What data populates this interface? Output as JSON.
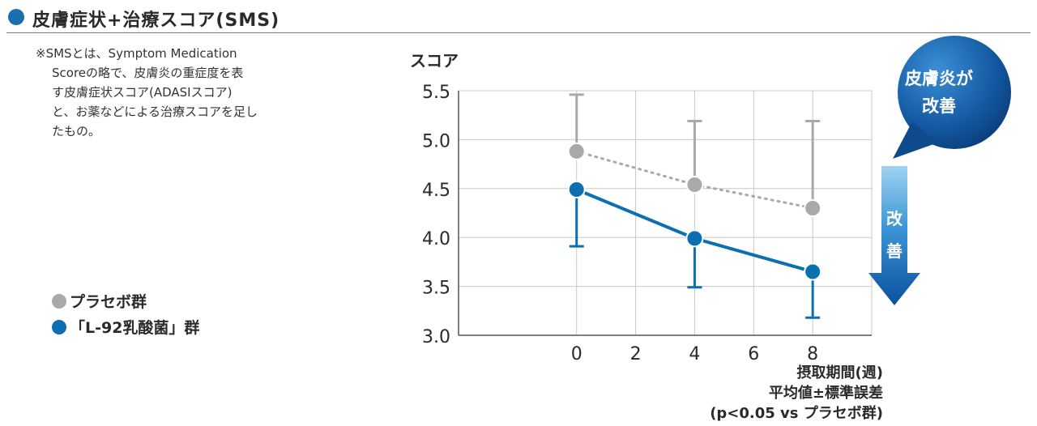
{
  "header": {
    "title": "皮膚症状+治療スコア(SMS)"
  },
  "note": {
    "lines": [
      "※SMSとは、Symptom Medication",
      "Scoreの略で、皮膚炎の重症度を表",
      "す皮膚症状スコア(ADASIスコア)",
      "と、お薬などによる治療スコアを足し",
      "たもの。"
    ]
  },
  "legend": {
    "placebo": "プラセボ群",
    "l92": "「L-92乳酸菌」群"
  },
  "badge": {
    "bubble_line1": "皮膚炎が",
    "bubble_line2": "改善",
    "arrow_char1": "改",
    "arrow_char2": "善"
  },
  "footnotes": {
    "xlabel": "摂取期間(週)",
    "stat": "平均値±標準誤差",
    "significance": "(p<0.05 vs プラセボ群)"
  },
  "colors": {
    "placebo": "#a9a9a9",
    "l92": "#0b6fb1",
    "accent": "#1b6fb0",
    "grid": "#c8c8c8"
  },
  "chart_data": {
    "type": "line",
    "ylabel": "スコア",
    "xlabel": "摂取期間(週)",
    "ylim": [
      3.0,
      5.5
    ],
    "xlim": [
      -4,
      10
    ],
    "yticks": [
      3.0,
      3.5,
      4.0,
      4.5,
      5.0,
      5.5
    ],
    "xticks": [
      0,
      2,
      4,
      6,
      8
    ],
    "legend": "left",
    "grid": true,
    "series": [
      {
        "name": "プラセボ群",
        "style": "dotted",
        "color": "#a9a9a9",
        "x": [
          0,
          4,
          8
        ],
        "y": [
          4.88,
          4.54,
          4.3
        ],
        "error_upper": [
          5.46,
          5.19,
          5.19
        ]
      },
      {
        "name": "「L-92乳酸菌」群",
        "style": "solid",
        "color": "#0b6fb1",
        "x": [
          0,
          4,
          8
        ],
        "y": [
          4.49,
          3.99,
          3.65
        ],
        "error_lower": [
          3.91,
          3.49,
          3.18
        ]
      }
    ]
  }
}
